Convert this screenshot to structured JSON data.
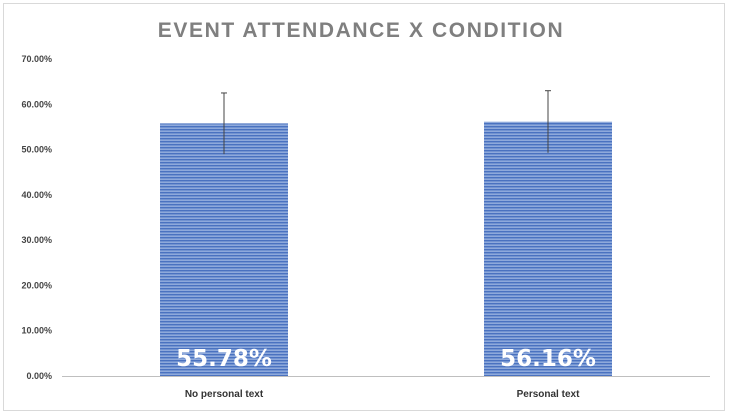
{
  "chart_data": {
    "type": "bar",
    "title": "EVENT ATTENDANCE X CONDITION",
    "xlabel": "",
    "ylabel": "",
    "categories": [
      "No personal text",
      "Personal text"
    ],
    "series": [
      {
        "values": [
          55.78,
          56.16
        ],
        "error_upper": [
          62.5,
          63.0
        ],
        "error_lower": [
          49.0,
          49.3
        ],
        "data_labels": [
          "55.78%",
          "56.16%"
        ]
      }
    ],
    "ylim": [
      0,
      70
    ],
    "yticks": [
      0,
      10,
      20,
      30,
      40,
      50,
      60,
      70
    ],
    "ytick_labels": [
      "0.00%",
      "10.00%",
      "20.00%",
      "30.00%",
      "40.00%",
      "50.00%",
      "60.00%",
      "70.00%"
    ],
    "grid": false,
    "legend": "none",
    "bar_color": "#4472c4"
  }
}
